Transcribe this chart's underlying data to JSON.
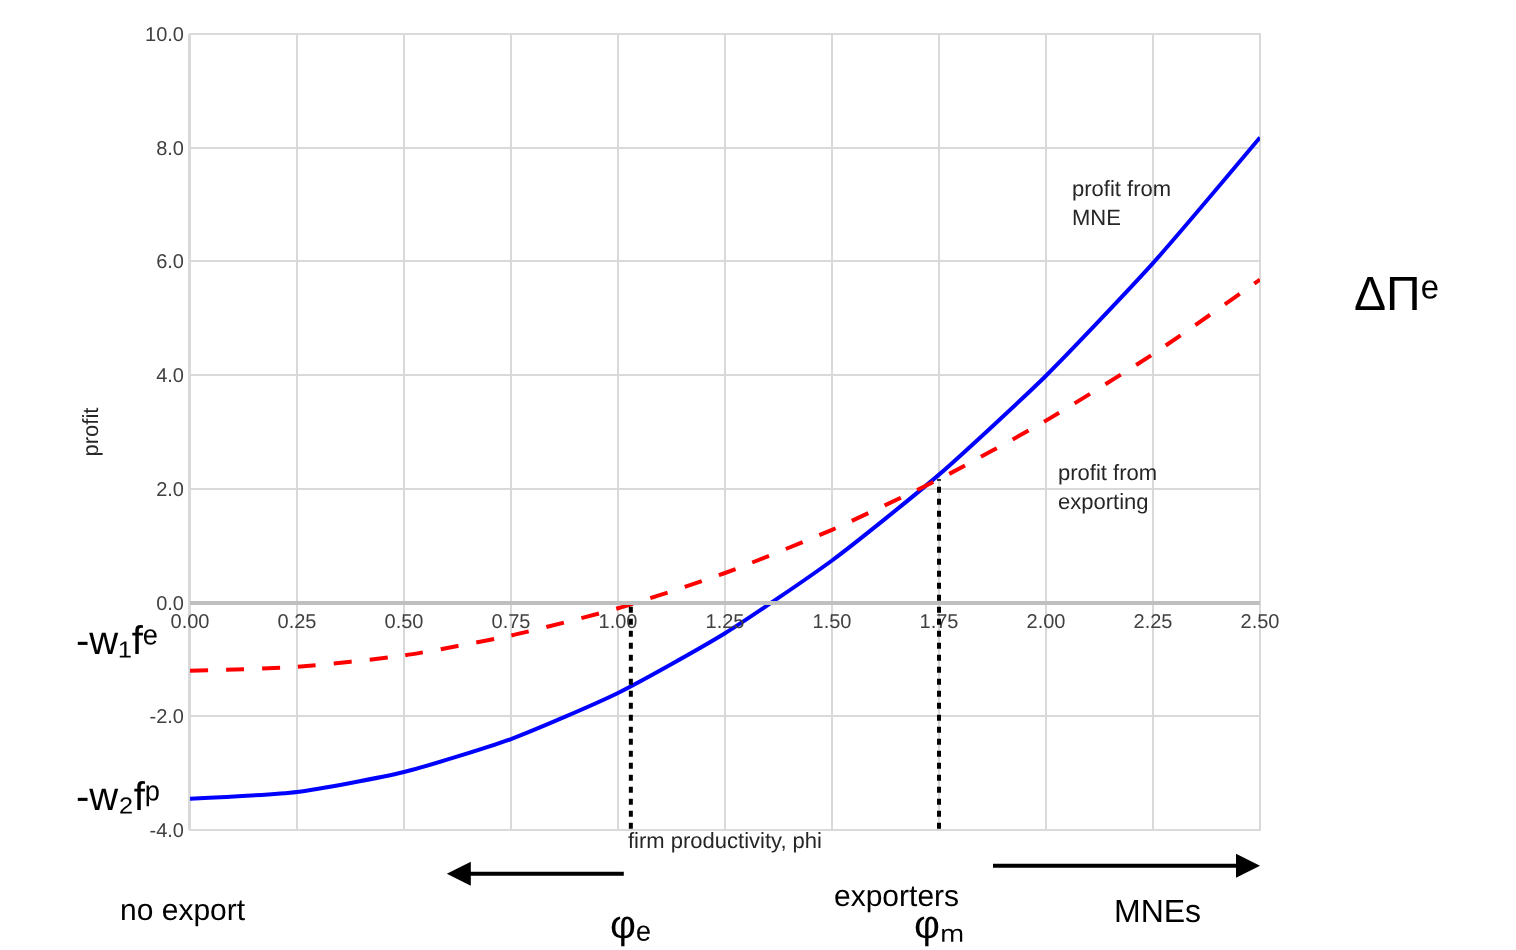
{
  "chart_data": {
    "type": "line",
    "xlabel": "firm productivity, phi",
    "ylabel": "profit",
    "x": [
      0,
      0.25,
      0.5,
      0.75,
      1.0,
      1.25,
      1.5,
      1.75,
      2.0,
      2.25,
      2.5
    ],
    "series": [
      {
        "name": "profit from MNE",
        "color": "#0000ff",
        "line_style": "solid",
        "values": [
          -3.45,
          -3.33,
          -2.98,
          -2.4,
          -1.59,
          -0.54,
          0.74,
          2.25,
          3.99,
          5.97,
          8.18
        ]
      },
      {
        "name": "profit from exporting",
        "color": "#ff0000",
        "line_style": "dashed",
        "values": [
          -1.2,
          -1.13,
          -0.93,
          -0.58,
          -0.1,
          0.52,
          1.28,
          2.17,
          3.2,
          4.37,
          5.68
        ]
      }
    ],
    "xlim": [
      0,
      2.5
    ],
    "xticks": [
      {
        "value": 0,
        "label": "0.00"
      },
      {
        "value": 0.25,
        "label": "0.25"
      },
      {
        "value": 0.5,
        "label": "0.50"
      },
      {
        "value": 0.75,
        "label": "0.75"
      },
      {
        "value": 1.0,
        "label": "1.00"
      },
      {
        "value": 1.25,
        "label": "1.25"
      },
      {
        "value": 1.5,
        "label": "1.50"
      },
      {
        "value": 1.75,
        "label": "1.75"
      },
      {
        "value": 2.0,
        "label": "2.00"
      },
      {
        "value": 2.25,
        "label": "2.25"
      },
      {
        "value": 2.5,
        "label": "2.50"
      }
    ],
    "ylim": [
      -4,
      10
    ],
    "yticks": [
      {
        "value": -4,
        "label": "-4.0"
      },
      {
        "value": -2,
        "label": "-2.0"
      },
      {
        "value": 0,
        "label": "0.0"
      },
      {
        "value": 2,
        "label": "2.0"
      },
      {
        "value": 4,
        "label": "4.0"
      },
      {
        "value": 6,
        "label": "6.0"
      },
      {
        "value": 8,
        "label": "8.0"
      },
      {
        "value": 10,
        "label": "10.0"
      }
    ],
    "grid": true,
    "legend": false,
    "marker": "none",
    "ref_lines": [
      {
        "axis": "x",
        "value": 1.03,
        "label": "φₑ",
        "color": "#000000",
        "line_style": "dotted"
      },
      {
        "axis": "x",
        "value": 1.75,
        "label": "φₘ",
        "color": "#000000",
        "line_style": "dotted"
      }
    ],
    "annotations": [
      "-w₁fᵉ",
      "-w₂fᵖ",
      "ΔΠᵉ",
      "no export",
      "exporters",
      "MNEs"
    ]
  }
}
